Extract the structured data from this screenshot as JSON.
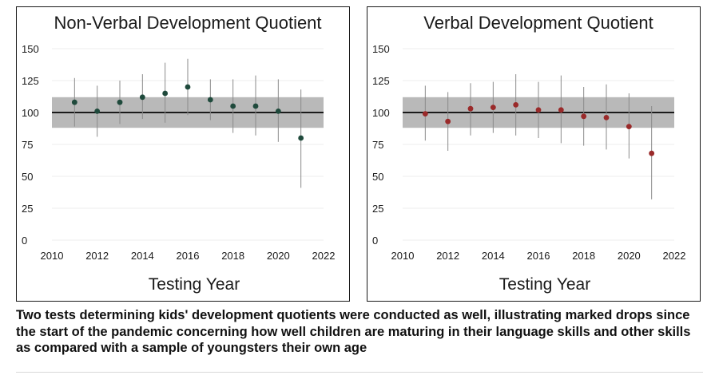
{
  "chart_data": [
    {
      "type": "scatter",
      "title": "Non-Verbal Development Quotient",
      "xlabel": "Testing Year",
      "ylabel": "",
      "xlim": [
        2010,
        2022
      ],
      "ylim": [
        0,
        150
      ],
      "x_ticks": [
        "2010",
        "2012",
        "2014",
        "2016",
        "2018",
        "2020",
        "2022"
      ],
      "y_ticks": [
        "0",
        "25",
        "50",
        "75",
        "100",
        "125",
        "150"
      ],
      "reference_line": 100,
      "reference_band": [
        88,
        112
      ],
      "grid": true,
      "marker_color": "#1f4a3c",
      "points": [
        {
          "x": 2011,
          "y": 108,
          "low": 89,
          "high": 127
        },
        {
          "x": 2012,
          "y": 101,
          "low": 81,
          "high": 121
        },
        {
          "x": 2013,
          "y": 108,
          "low": 91,
          "high": 125
        },
        {
          "x": 2014,
          "y": 112,
          "low": 95,
          "high": 130
        },
        {
          "x": 2015,
          "y": 115,
          "low": 92,
          "high": 139
        },
        {
          "x": 2016,
          "y": 120,
          "low": 98,
          "high": 142
        },
        {
          "x": 2017,
          "y": 110,
          "low": 94,
          "high": 126
        },
        {
          "x": 2018,
          "y": 105,
          "low": 84,
          "high": 126
        },
        {
          "x": 2019,
          "y": 105,
          "low": 82,
          "high": 129
        },
        {
          "x": 2020,
          "y": 101,
          "low": 77,
          "high": 126
        },
        {
          "x": 2021,
          "y": 80,
          "low": 41,
          "high": 118
        }
      ]
    },
    {
      "type": "scatter",
      "title": "Verbal Development Quotient",
      "xlabel": "Testing Year",
      "ylabel": "",
      "xlim": [
        2010,
        2022
      ],
      "ylim": [
        0,
        150
      ],
      "x_ticks": [
        "2010",
        "2012",
        "2014",
        "2016",
        "2018",
        "2020",
        "2022"
      ],
      "y_ticks": [
        "0",
        "25",
        "50",
        "75",
        "100",
        "125",
        "150"
      ],
      "reference_line": 100,
      "reference_band": [
        88,
        112
      ],
      "grid": true,
      "marker_color": "#9a2a2a",
      "points": [
        {
          "x": 2011,
          "y": 99,
          "low": 78,
          "high": 121
        },
        {
          "x": 2012,
          "y": 93,
          "low": 70,
          "high": 116
        },
        {
          "x": 2013,
          "y": 103,
          "low": 82,
          "high": 123
        },
        {
          "x": 2014,
          "y": 104,
          "low": 84,
          "high": 124
        },
        {
          "x": 2015,
          "y": 106,
          "low": 82,
          "high": 130
        },
        {
          "x": 2016,
          "y": 102,
          "low": 80,
          "high": 124
        },
        {
          "x": 2017,
          "y": 102,
          "low": 76,
          "high": 129
        },
        {
          "x": 2018,
          "y": 97,
          "low": 74,
          "high": 120
        },
        {
          "x": 2019,
          "y": 96,
          "low": 71,
          "high": 122
        },
        {
          "x": 2020,
          "y": 89,
          "low": 64,
          "high": 115
        },
        {
          "x": 2021,
          "y": 68,
          "low": 32,
          "high": 105
        }
      ]
    }
  ],
  "caption": "Two tests determining kids' development quotients were conducted as well, illustrating marked drops since the start of the pandemic concerning how well children are maturing in their language skills and other skills as compared with a sample of youngsters their own age",
  "colors": {
    "band": "#b9b9b9",
    "reference_line": "#1a1a1a",
    "whisker": "#8a8a8a",
    "grid": "#ececec"
  }
}
